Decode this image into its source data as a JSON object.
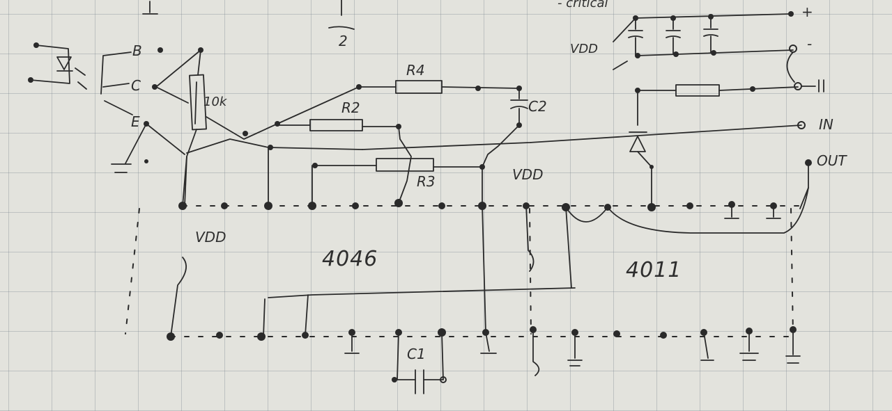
{
  "labels": {
    "b": "B",
    "c": "C",
    "e": "E",
    "pot": "10k",
    "r2": "R2",
    "r3": "R3",
    "r4": "R4",
    "c1": "C1",
    "c2": "C2",
    "vdd_left": "VDD",
    "vdd_mid": "VDD",
    "vdd_top": "VDD",
    "chip1": "4046",
    "chip2": "4011",
    "plus": "+",
    "minus": "-",
    "in": "IN",
    "out": "OUT",
    "top_fragment": "- critical",
    "num_2": "2"
  }
}
